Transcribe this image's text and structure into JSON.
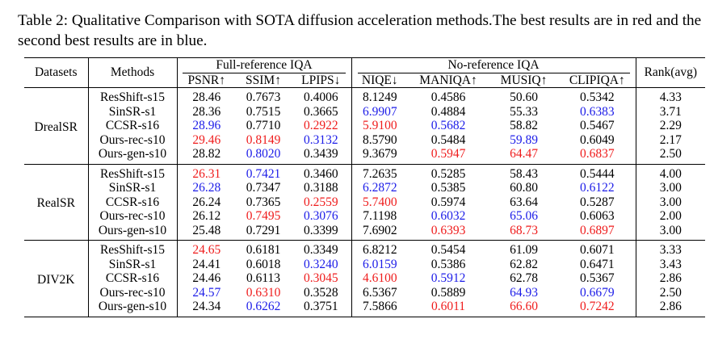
{
  "caption": "Table 2: Qualitative Comparison with SOTA diffusion acceleration methods.The best results are in red and the second best results are in blue.",
  "headers": {
    "datasets": "Datasets",
    "methods": "Methods",
    "full_ref": "Full-reference IQA",
    "no_ref": "No-reference IQA",
    "rank": "Rank(avg)",
    "metrics": [
      "PSNR↑",
      "SSIM↑",
      "LPIPS↓",
      "NIQE↓",
      "MANIQA↑",
      "MUSIQ↑",
      "CLIPIQA↑"
    ]
  },
  "colors": {
    "best": "#ef1c1c",
    "second": "#1c1ce8"
  },
  "groups": [
    {
      "dataset": "DrealSR",
      "rows": [
        {
          "method": "ResShift-s15",
          "values": [
            "28.46",
            "0.7673",
            "0.4006",
            "8.1249",
            "0.4586",
            "50.60",
            "0.5342"
          ],
          "styles": [
            "",
            "",
            "",
            "",
            "",
            "",
            ""
          ],
          "rank": "4.33"
        },
        {
          "method": "SinSR-s1",
          "values": [
            "28.36",
            "0.7515",
            "0.3665",
            "6.9907",
            "0.4884",
            "55.33",
            "0.6383"
          ],
          "styles": [
            "",
            "",
            "",
            "blue",
            "",
            "",
            "blue"
          ],
          "rank": "3.71"
        },
        {
          "method": "CCSR-s16",
          "values": [
            "28.96",
            "0.7710",
            "0.2922",
            "5.9100",
            "0.5682",
            "58.82",
            "0.5467"
          ],
          "styles": [
            "blue",
            "",
            "red",
            "red",
            "blue",
            "",
            ""
          ],
          "rank": "2.29"
        },
        {
          "method": "Ours-rec-s10",
          "values": [
            "29.46",
            "0.8149",
            "0.3132",
            "8.5790",
            "0.5484",
            "59.89",
            "0.6049"
          ],
          "styles": [
            "red",
            "red",
            "blue",
            "",
            "",
            "blue",
            ""
          ],
          "rank": "2.17"
        },
        {
          "method": "Ours-gen-s10",
          "values": [
            "28.82",
            "0.8020",
            "0.3439",
            "9.3679",
            "0.5947",
            "64.47",
            "0.6837"
          ],
          "styles": [
            "",
            "blue",
            "",
            "",
            "red",
            "red",
            "red"
          ],
          "rank": "2.50"
        }
      ]
    },
    {
      "dataset": "RealSR",
      "rows": [
        {
          "method": "ResShift-s15",
          "values": [
            "26.31",
            "0.7421",
            "0.3460",
            "7.2635",
            "0.5285",
            "58.43",
            "0.5444"
          ],
          "styles": [
            "red",
            "blue",
            "",
            "",
            "",
            "",
            ""
          ],
          "rank": "4.00"
        },
        {
          "method": "SinSR-s1",
          "values": [
            "26.28",
            "0.7347",
            "0.3188",
            "6.2872",
            "0.5385",
            "60.80",
            "0.6122"
          ],
          "styles": [
            "blue",
            "",
            "",
            "blue",
            "",
            "",
            "blue"
          ],
          "rank": "3.00"
        },
        {
          "method": "CCSR-s16",
          "values": [
            "26.24",
            "0.7365",
            "0.2559",
            "5.7400",
            "0.5974",
            "63.64",
            "0.5287"
          ],
          "styles": [
            "",
            "",
            "red",
            "red",
            "",
            "",
            ""
          ],
          "rank": "3.00"
        },
        {
          "method": "Ours-rec-s10",
          "values": [
            "26.12",
            "0.7495",
            "0.3076",
            "7.1198",
            "0.6032",
            "65.06",
            "0.6063"
          ],
          "styles": [
            "",
            "red",
            "blue",
            "",
            "blue",
            "blue",
            ""
          ],
          "rank": "2.00"
        },
        {
          "method": "Ours-gen-s10",
          "values": [
            "25.48",
            "0.7291",
            "0.3399",
            "7.6902",
            "0.6393",
            "68.73",
            "0.6897"
          ],
          "styles": [
            "",
            "",
            "",
            "",
            "red",
            "red",
            "red"
          ],
          "rank": "3.00"
        }
      ]
    },
    {
      "dataset": "DIV2K",
      "rows": [
        {
          "method": "ResShift-s15",
          "values": [
            "24.65",
            "0.6181",
            "0.3349",
            "6.8212",
            "0.5454",
            "61.09",
            "0.6071"
          ],
          "styles": [
            "red",
            "",
            "",
            "",
            "",
            "",
            ""
          ],
          "rank": "3.33"
        },
        {
          "method": "SinSR-s1",
          "values": [
            "24.41",
            "0.6018",
            "0.3240",
            "6.0159",
            "0.5386",
            "62.82",
            "0.6471"
          ],
          "styles": [
            "",
            "",
            "blue",
            "blue",
            "",
            "",
            ""
          ],
          "rank": "3.43"
        },
        {
          "method": "CCSR-s16",
          "values": [
            "24.46",
            "0.6113",
            "0.3045",
            "4.6100",
            "0.5912",
            "62.78",
            "0.5367"
          ],
          "styles": [
            "",
            "",
            "red",
            "red",
            "blue",
            "",
            ""
          ],
          "rank": "2.86"
        },
        {
          "method": "Ours-rec-s10",
          "values": [
            "24.57",
            "0.6310",
            "0.3528",
            "6.5367",
            "0.5889",
            "64.93",
            "0.6679"
          ],
          "styles": [
            "blue",
            "red",
            "",
            "",
            "",
            "blue",
            "blue"
          ],
          "rank": "2.50"
        },
        {
          "method": "Ours-gen-s10",
          "values": [
            "24.34",
            "0.6262",
            "0.3751",
            "7.5866",
            "0.6011",
            "66.60",
            "0.7242"
          ],
          "styles": [
            "",
            "blue",
            "",
            "",
            "red",
            "red",
            "red"
          ],
          "rank": "2.86"
        }
      ]
    }
  ]
}
